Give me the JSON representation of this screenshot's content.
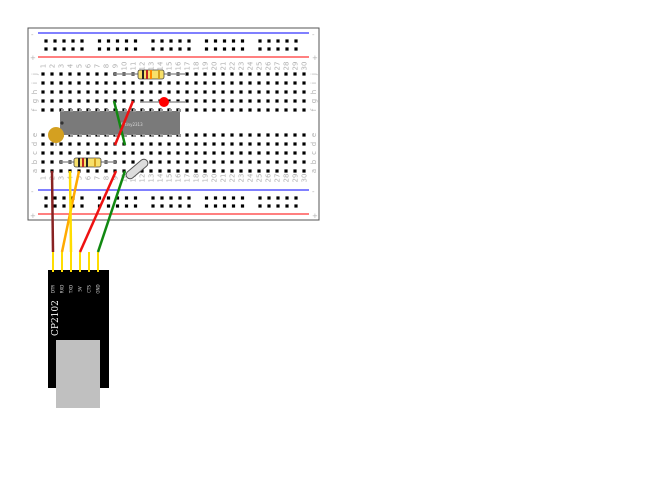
{
  "breadboard": {
    "columns": [
      "1",
      "2",
      "3",
      "4",
      "5",
      "6",
      "7",
      "8",
      "9",
      "10",
      "11",
      "12",
      "13",
      "14",
      "15",
      "16",
      "17",
      "18",
      "19",
      "20",
      "21",
      "22",
      "23",
      "24",
      "25",
      "26",
      "27",
      "28",
      "29",
      "30"
    ],
    "rows_top": [
      "j",
      "i",
      "h",
      "g",
      "f"
    ],
    "rows_bottom": [
      "e",
      "d",
      "c",
      "b",
      "a"
    ],
    "rail_plus": "+",
    "rail_minus": "-",
    "rail_colors": {
      "positive": "#ff0000",
      "negative": "#0000ff"
    }
  },
  "chip": {
    "label": "ATtiny2313",
    "color": "#7a7a7a"
  },
  "usb_adapter": {
    "label": "CP2102",
    "pins": [
      "DTR",
      "RXD",
      "TXD",
      "5V",
      "CTS",
      "GND"
    ],
    "color": "#000000",
    "connector_color": "#c0c0c0"
  },
  "wire_colors": {
    "red": "#ee1111",
    "green": "#118811",
    "yellow": "#ffdd00",
    "orange": "#ffaa00",
    "darkred": "#882222"
  },
  "components": {
    "led_color": "#ff0000",
    "capacitor_color": "#d4a020",
    "resistor_body": "#f8e06a"
  }
}
